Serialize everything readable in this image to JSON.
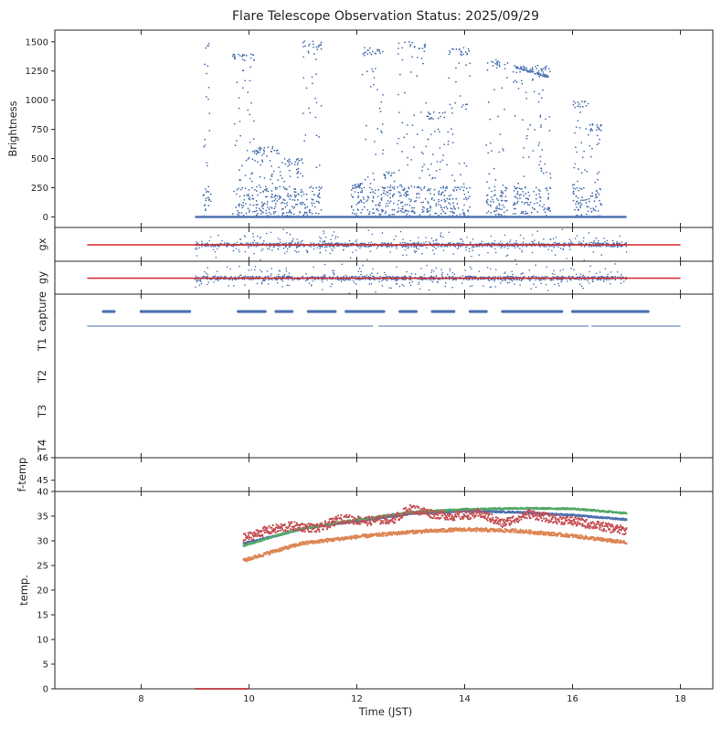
{
  "title": "Flare Telescope Observation Status: 2025/09/29",
  "xlabel": "Time (JST)",
  "colors": {
    "blue": "#4c72b0",
    "orange": "#dd8452",
    "green": "#55a868",
    "red": "#c44e52",
    "limit_red": "#d62728",
    "axes": "#262626"
  },
  "chart_data": {
    "type": "scatter",
    "x_axis": {
      "xlim": [
        6.4,
        18.6
      ],
      "ticks": [
        8,
        10,
        12,
        14,
        16,
        18
      ],
      "tick_labels": [
        "8",
        "10",
        "12",
        "14",
        "16",
        "18"
      ]
    },
    "panels": [
      {
        "id": "brightness",
        "ylabel": "Brightness",
        "ylim": [
          -90,
          1600
        ],
        "yticks": [
          0,
          250,
          500,
          750,
          1000,
          1250,
          1500
        ],
        "ytick_labels": [
          "0",
          "250",
          "500",
          "750",
          "1000",
          "1250",
          "1500"
        ],
        "series": [
          {
            "color": "blue",
            "baseline": 0,
            "x_start": 9.0,
            "x_end": 17.0,
            "bursts": [
              [
                9.15,
                9.3,
                1500
              ],
              [
                9.7,
                10.1,
                1400
              ],
              [
                10.1,
                10.6,
                600
              ],
              [
                10.6,
                11.0,
                500
              ],
              [
                11.0,
                11.35,
                1510
              ],
              [
                11.9,
                12.1,
                300
              ],
              [
                12.1,
                12.5,
                1450
              ],
              [
                12.5,
                12.7,
                400
              ],
              [
                12.75,
                13.3,
                1500
              ],
              [
                13.3,
                13.7,
                900
              ],
              [
                13.7,
                14.1,
                1450
              ],
              [
                14.4,
                14.8,
                1350
              ],
              [
                14.9,
                15.6,
                1300
              ],
              [
                16.0,
                16.3,
                1000
              ],
              [
                16.3,
                16.55,
                800
              ]
            ]
          }
        ]
      },
      {
        "id": "gx",
        "ylabel": "gx",
        "series": [
          {
            "color": "limit_red",
            "kind": "line",
            "x": [
              7.0,
              18.0
            ],
            "y": [
              0,
              0
            ]
          },
          {
            "color": "blue",
            "kind": "scatter",
            "x_start": 9.0,
            "x_end": 17.0
          }
        ]
      },
      {
        "id": "gy",
        "ylabel": "gy",
        "series": [
          {
            "color": "limit_red",
            "kind": "line",
            "x": [
              7.0,
              18.0
            ],
            "y": [
              0,
              0
            ]
          },
          {
            "color": "blue",
            "kind": "scatter",
            "x_start": 9.0,
            "x_end": 17.0
          }
        ]
      },
      {
        "id": "status",
        "ylabels": [
          "capture",
          "T1",
          "T2",
          "T3",
          "T4"
        ],
        "series": [
          {
            "name": "capture",
            "color": "blue",
            "segments": [
              [
                7.3,
                7.5
              ],
              [
                8.0,
                8.9
              ],
              [
                9.8,
                10.3
              ],
              [
                10.5,
                10.8
              ],
              [
                11.1,
                11.6
              ],
              [
                11.8,
                12.5
              ],
              [
                12.8,
                13.1
              ],
              [
                13.4,
                13.8
              ],
              [
                14.1,
                14.4
              ],
              [
                14.7,
                15.8
              ],
              [
                16.0,
                17.4
              ]
            ]
          },
          {
            "name": "T1",
            "color": "blue",
            "segments": [
              [
                7.0,
                12.3
              ],
              [
                12.4,
                16.3
              ],
              [
                16.35,
                18.0
              ]
            ]
          }
        ]
      },
      {
        "id": "ftemp",
        "ylabel": "f-temp",
        "ylim": [
          44.5,
          46
        ],
        "yticks": [
          45,
          46
        ],
        "ytick_labels": [
          "45",
          "46"
        ]
      },
      {
        "id": "temp",
        "ylabel": "temp.",
        "ylim": [
          0,
          40
        ],
        "yticks": [
          0,
          5,
          10,
          15,
          20,
          25,
          30,
          35,
          40
        ],
        "ytick_labels": [
          "0",
          "5",
          "10",
          "15",
          "20",
          "25",
          "30",
          "35",
          "40"
        ],
        "series": [
          {
            "color": "blue",
            "x": [
              9.9,
              10.5,
              11.0,
              12.0,
              13.0,
              14.0,
              15.0,
              16.0,
              17.0
            ],
            "y": [
              29.5,
              31.0,
              32.5,
              34.0,
              35.5,
              36.0,
              35.8,
              35.2,
              34.3
            ]
          },
          {
            "color": "green",
            "x": [
              9.9,
              10.5,
              11.0,
              12.0,
              13.0,
              14.0,
              15.0,
              16.0,
              17.0
            ],
            "y": [
              29.0,
              31.0,
              32.5,
              34.3,
              35.8,
              36.4,
              36.6,
              36.5,
              35.6
            ]
          },
          {
            "color": "orange",
            "x": [
              9.9,
              10.5,
              11.0,
              12.0,
              13.0,
              14.0,
              15.0,
              16.0,
              17.0
            ],
            "y": [
              26.0,
              28.0,
              29.5,
              30.8,
              31.8,
              32.3,
              32.0,
              31.0,
              29.6
            ]
          },
          {
            "color": "red",
            "x": [
              9.9,
              10.3,
              10.8,
              11.3,
              11.7,
              12.2,
              12.7,
              13.0,
              13.4,
              13.8,
              14.3,
              14.7,
              15.2,
              15.6,
              16.0,
              16.5,
              17.0
            ],
            "y": [
              30.5,
              32.0,
              33.0,
              32.5,
              34.5,
              34.0,
              34.5,
              36.5,
              35.5,
              35.0,
              35.5,
              33.5,
              35.5,
              34.5,
              34.0,
              33.0,
              32.0
            ]
          },
          {
            "color": "red",
            "kind": "line",
            "x": [
              9.0,
              10.0
            ],
            "y": [
              0,
              0
            ]
          }
        ]
      }
    ]
  }
}
